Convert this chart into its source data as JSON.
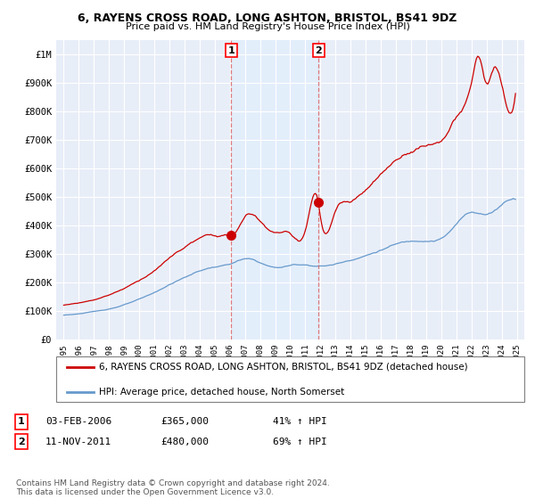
{
  "title": "6, RAYENS CROSS ROAD, LONG ASHTON, BRISTOL, BS41 9DZ",
  "subtitle": "Price paid vs. HM Land Registry's House Price Index (HPI)",
  "red_label": "6, RAYENS CROSS ROAD, LONG ASHTON, BRISTOL, BS41 9DZ (detached house)",
  "blue_label": "HPI: Average price, detached house, North Somerset",
  "sale1_date": "03-FEB-2006",
  "sale1_price": 365000,
  "sale1_pct": "41% ↑ HPI",
  "sale1_year": 2006.09,
  "sale2_date": "11-NOV-2011",
  "sale2_price": 480000,
  "sale2_pct": "69% ↑ HPI",
  "sale2_year": 2011.87,
  "footnote": "Contains HM Land Registry data © Crown copyright and database right 2024.\nThis data is licensed under the Open Government Licence v3.0.",
  "xlim": [
    1994.5,
    2025.5
  ],
  "ylim": [
    0,
    1050000
  ],
  "background_color": "#ffffff",
  "plot_bg_color": "#e8eef8",
  "grid_color": "#ffffff",
  "red_color": "#cc0000",
  "blue_color": "#6699cc",
  "dashed_color": "#dd6666",
  "span_color": "#ddeeff"
}
